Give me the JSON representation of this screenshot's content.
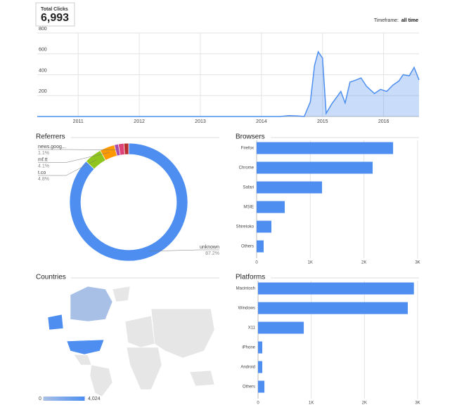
{
  "header": {
    "total_label": "Total Clicks",
    "total_value": "6,993",
    "timeframe_label": "Timeframe:",
    "timeframe_value": "all time"
  },
  "chart_data": [
    {
      "type": "area",
      "x": [
        2010.33,
        2014.3,
        2014.45,
        2014.6,
        2014.7,
        2014.8,
        2014.87,
        2014.93,
        2015.0,
        2015.06,
        2015.15,
        2015.3,
        2015.37,
        2015.45,
        2015.55,
        2015.63,
        2015.72,
        2015.85,
        2015.95,
        2016.05,
        2016.15,
        2016.25,
        2016.32,
        2016.42,
        2016.5,
        2016.58
      ],
      "series": [
        {
          "color": "#4d8ef0",
          "values": [
            0,
            0,
            8,
            5,
            0,
            140,
            490,
            620,
            560,
            30,
            120,
            240,
            130,
            330,
            350,
            370,
            290,
            220,
            260,
            240,
            300,
            340,
            400,
            390,
            470,
            350
          ]
        }
      ],
      "xlim": [
        2010.33,
        2016.58
      ],
      "ylim": [
        0,
        800
      ],
      "xticks": [
        2011,
        2012,
        2013,
        2014,
        2015,
        2016
      ],
      "yticks": [
        200,
        400,
        600,
        800
      ],
      "grid": true
    },
    {
      "type": "pie",
      "title": "Referrers",
      "categories": [
        "unknown",
        "t.co",
        "mf.tt",
        "news.goog...",
        null,
        null
      ],
      "values": [
        87.2,
        4.8,
        4.1,
        1.1,
        1.5,
        1.3
      ],
      "value_labels": [
        "87.2%",
        "4.8%",
        "4.1%",
        "1.1%",
        null,
        null
      ],
      "colors": [
        "#4d8ef0",
        "#8fc51c",
        "#ff9900",
        "#a64db0",
        "#dd4477",
        "#b82e2e"
      ]
    },
    {
      "type": "bar",
      "title": "Browsers",
      "categories": [
        "Firefox",
        "Chrome",
        "Safari",
        "MSIE",
        "Shiretoko",
        "Others"
      ],
      "values": [
        2543,
        2162,
        1219,
        524,
        275,
        131
      ],
      "color": "#4d8ef0",
      "xlim": [
        0,
        3000
      ],
      "xticks": [
        0,
        {
          "value": 1000,
          "label": "1K"
        },
        {
          "value": 2000,
          "label": "2K"
        },
        {
          "value": 3000,
          "label": "3K"
        }
      ],
      "grid": true
    },
    {
      "type": "bar",
      "title": "Platforms",
      "categories": [
        "Macintosh",
        "Windows",
        "X11",
        "iPhone",
        "Android",
        "Others"
      ],
      "values": [
        2930,
        2815,
        860,
        80,
        80,
        120
      ],
      "color": "#4d8ef0",
      "xlim": [
        0,
        3000
      ],
      "xticks": [
        0,
        {
          "value": 1000,
          "label": "1K"
        },
        {
          "value": 2000,
          "label": "2K"
        },
        {
          "value": 3000,
          "label": "3K"
        }
      ],
      "grid": true
    },
    {
      "type": "map",
      "title": "Countries",
      "legend_min": 0,
      "legend_max": {
        "value": 4024,
        "label": "4,024"
      },
      "colors": [
        "#a9c0e6",
        "#4d8ef0"
      ]
    }
  ]
}
